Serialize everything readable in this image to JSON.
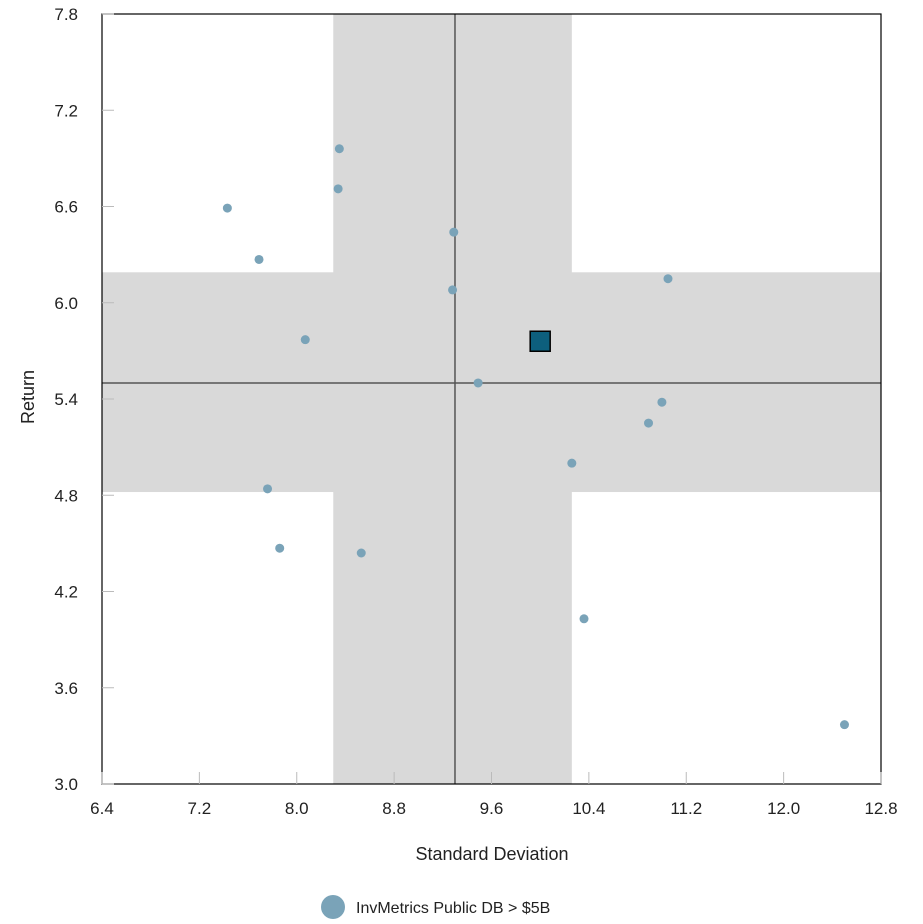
{
  "chart_data": {
    "type": "scatter",
    "xlabel": "Standard Deviation",
    "ylabel": "Return",
    "xlim": [
      6.4,
      12.8
    ],
    "ylim": [
      3.0,
      7.8
    ],
    "xticks": [
      "6.4",
      "7.2",
      "8.0",
      "8.8",
      "9.6",
      "10.4",
      "11.2",
      "12.0",
      "12.8"
    ],
    "yticks": [
      "3.0",
      "3.6",
      "4.2",
      "4.8",
      "5.4",
      "6.0",
      "6.6",
      "7.2",
      "7.8"
    ],
    "xtick_values": [
      6.4,
      7.2,
      8.0,
      8.8,
      9.6,
      10.4,
      11.2,
      12.0,
      12.8
    ],
    "ytick_values": [
      3.0,
      3.6,
      4.2,
      4.8,
      5.4,
      6.0,
      6.6,
      7.2,
      7.8
    ],
    "grid": false,
    "legend_position": "bottom-center",
    "median_lines": {
      "x": 9.3,
      "y": 5.5
    },
    "shaded_bands": {
      "x_range": [
        8.3,
        10.26
      ],
      "y_range": [
        4.82,
        6.19
      ]
    },
    "series": [
      {
        "name": "InvMetrics Public DB > $5B",
        "color": "#7aa3b8",
        "points": [
          {
            "x": 7.43,
            "y": 6.59
          },
          {
            "x": 7.69,
            "y": 6.27
          },
          {
            "x": 8.07,
            "y": 5.77
          },
          {
            "x": 8.34,
            "y": 6.71
          },
          {
            "x": 8.35,
            "y": 6.96
          },
          {
            "x": 7.76,
            "y": 4.84
          },
          {
            "x": 7.86,
            "y": 4.47
          },
          {
            "x": 8.53,
            "y": 4.44
          },
          {
            "x": 9.29,
            "y": 6.44
          },
          {
            "x": 9.28,
            "y": 6.08
          },
          {
            "x": 9.49,
            "y": 5.5
          },
          {
            "x": 10.26,
            "y": 5.0
          },
          {
            "x": 10.36,
            "y": 4.03
          },
          {
            "x": 10.89,
            "y": 5.25
          },
          {
            "x": 11.0,
            "y": 5.38
          },
          {
            "x": 11.05,
            "y": 6.15
          },
          {
            "x": 12.5,
            "y": 3.37
          }
        ]
      }
    ],
    "highlight": {
      "x": 10.0,
      "y": 5.76,
      "color": "#0d5f7d"
    },
    "colors": {
      "band": "#d9d9d9",
      "median_line": "#555555",
      "axis": "#000000"
    }
  }
}
